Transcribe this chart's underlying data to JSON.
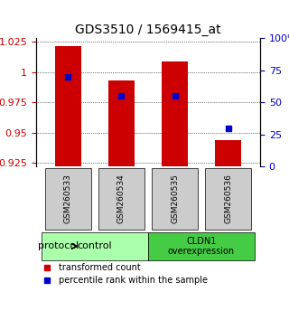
{
  "title": "GDS3510 / 1569415_at",
  "samples": [
    "GSM260533",
    "GSM260534",
    "GSM260535",
    "GSM260536"
  ],
  "bar_tops": [
    1.022,
    0.993,
    1.009,
    0.944
  ],
  "bar_base": 0.922,
  "ylim_left": [
    0.922,
    1.028
  ],
  "yticks_left": [
    0.925,
    0.95,
    0.975,
    1.0,
    1.025
  ],
  "ytick_labels_left": [
    "0.925",
    "0.95",
    "0.975",
    "1",
    "1.025"
  ],
  "ylim_right": [
    0,
    100
  ],
  "yticks_right": [
    0,
    25,
    50,
    75,
    100
  ],
  "ytick_labels_right": [
    "0",
    "25",
    "50",
    "75",
    "100%"
  ],
  "blue_pct": [
    70,
    55,
    55,
    30
  ],
  "bar_color": "#cc0000",
  "blue_color": "#0000cc",
  "groups": [
    {
      "label": "control",
      "samples": [
        0,
        1
      ],
      "color": "#aaffaa"
    },
    {
      "label": "CLDN1\noverexpression",
      "samples": [
        2,
        3
      ],
      "color": "#44cc44"
    }
  ],
  "group_box_color": "#cccccc",
  "protocol_label": "protocol",
  "legend_red_label": "transformed count",
  "legend_blue_label": "percentile rank within the sample",
  "bar_width": 0.5
}
